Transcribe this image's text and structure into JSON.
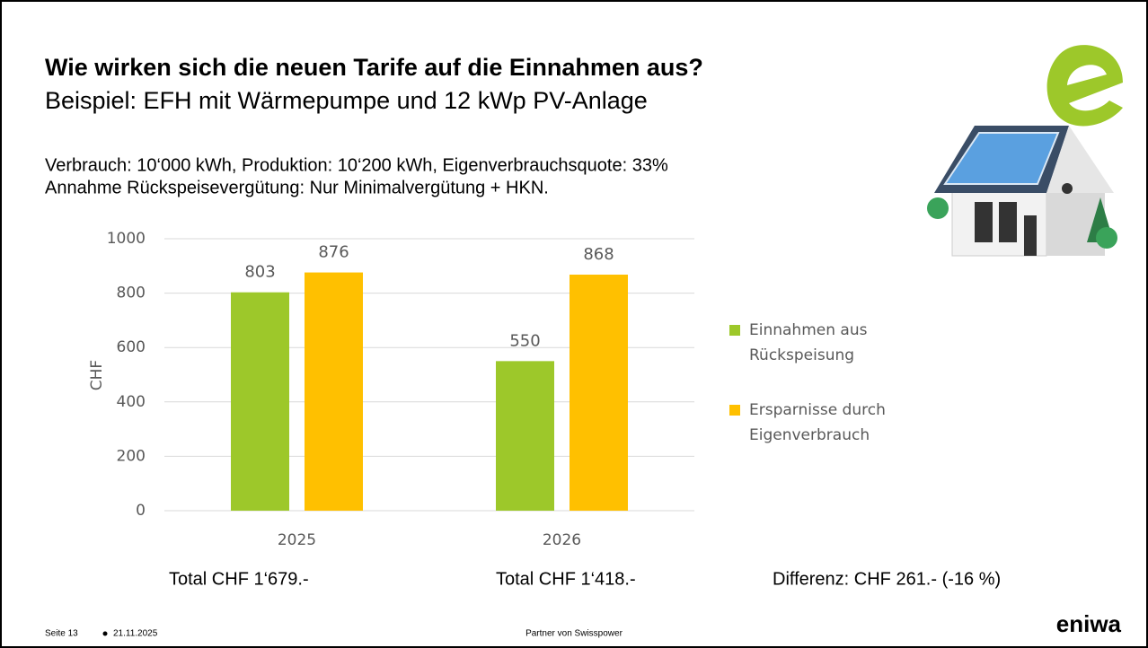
{
  "header": {
    "title": "Wie wirken sich die neuen Tarife auf die Einnahmen aus?",
    "subtitle": "Beispiel: EFH mit Wärmepumpe und 12 kWp PV-Anlage"
  },
  "info": [
    "Verbrauch: 10‘000 kWh, Produktion: 10‘200 kWh, Eigenverbrauchsquote: 33%",
    "Annahme Rückspeisevergütung: Nur Minimalvergütung + HKN."
  ],
  "chart_data": {
    "type": "bar",
    "categories": [
      "2025",
      "2026"
    ],
    "y_label": "CHF",
    "series": [
      {
        "name": "Einnahmen aus Rückspeisung",
        "color": "#9dc82a",
        "values": [
          803,
          550
        ]
      },
      {
        "name": "Ersparnisse durch Eigenverbrauch",
        "color": "#ffc000",
        "values": [
          876,
          868
        ]
      }
    ],
    "ylim": [
      0,
      1000
    ],
    "yticks": [
      0,
      200,
      400,
      600,
      800,
      1000
    ],
    "grid": true,
    "legend": "right"
  },
  "totals": [
    "Total CHF 1‘679.-",
    "Total CHF 1‘418.-",
    "Differenz: CHF 261.-  (-16 %)"
  ],
  "footer": {
    "page": "Seite 13",
    "date": "21.11.2025",
    "partner": "Partner von Swisspower",
    "logo": "eniwa"
  }
}
